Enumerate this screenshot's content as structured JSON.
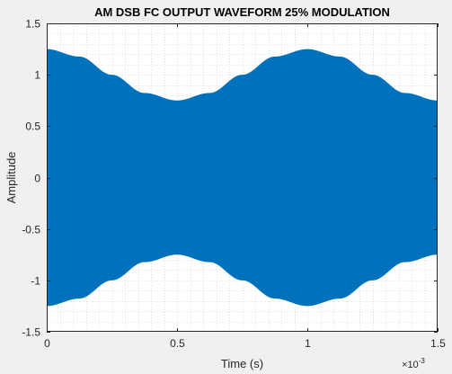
{
  "chart_data": {
    "type": "area",
    "title": "AM DSB FC OUTPUT WAVEFORM 25% MODULATION",
    "xlabel": "Time (s)",
    "ylabel": "Amplitude",
    "x_exponent": {
      "base": "10",
      "exponent": "-3"
    },
    "xlim": [
      0,
      1.5
    ],
    "ylim": [
      -1.5,
      1.5
    ],
    "x_ticks": [
      {
        "value": 0,
        "label": "0"
      },
      {
        "value": 0.5,
        "label": "0.5"
      },
      {
        "value": 1,
        "label": "1"
      },
      {
        "value": 1.5,
        "label": "1.5"
      }
    ],
    "y_ticks": [
      {
        "value": 1.5,
        "label": "1.5"
      },
      {
        "value": 1,
        "label": "1"
      },
      {
        "value": 0.5,
        "label": "0.5"
      },
      {
        "value": 0,
        "label": "0"
      },
      {
        "value": -0.5,
        "label": "-0.5"
      },
      {
        "value": -1,
        "label": "-1"
      },
      {
        "value": -1.5,
        "label": "-1.5"
      }
    ],
    "grid": "minor-dotted",
    "series": [
      {
        "color": "#0072bd",
        "envelope_points": [
          {
            "x": 0,
            "upper": 1.25,
            "lower": -1.25
          },
          {
            "x": 0.125,
            "upper": 1.177,
            "lower": -1.177
          },
          {
            "x": 0.25,
            "upper": 1.0,
            "lower": -1.0
          },
          {
            "x": 0.375,
            "upper": 0.823,
            "lower": -0.823
          },
          {
            "x": 0.5,
            "upper": 0.75,
            "lower": -0.75
          },
          {
            "x": 0.625,
            "upper": 0.823,
            "lower": -0.823
          },
          {
            "x": 0.75,
            "upper": 1.0,
            "lower": -1.0
          },
          {
            "x": 0.875,
            "upper": 1.177,
            "lower": -1.177
          },
          {
            "x": 1.0,
            "upper": 1.25,
            "lower": -1.25
          },
          {
            "x": 1.125,
            "upper": 1.177,
            "lower": -1.177
          },
          {
            "x": 1.25,
            "upper": 1.0,
            "lower": -1.0
          },
          {
            "x": 1.375,
            "upper": 0.823,
            "lower": -0.823
          },
          {
            "x": 1.5,
            "upper": 0.75,
            "lower": -0.75
          }
        ]
      }
    ]
  },
  "colors": {
    "figure_bg": "#f0f0f0",
    "axes_bg": "#ffffff",
    "signal": "#0072bd"
  }
}
